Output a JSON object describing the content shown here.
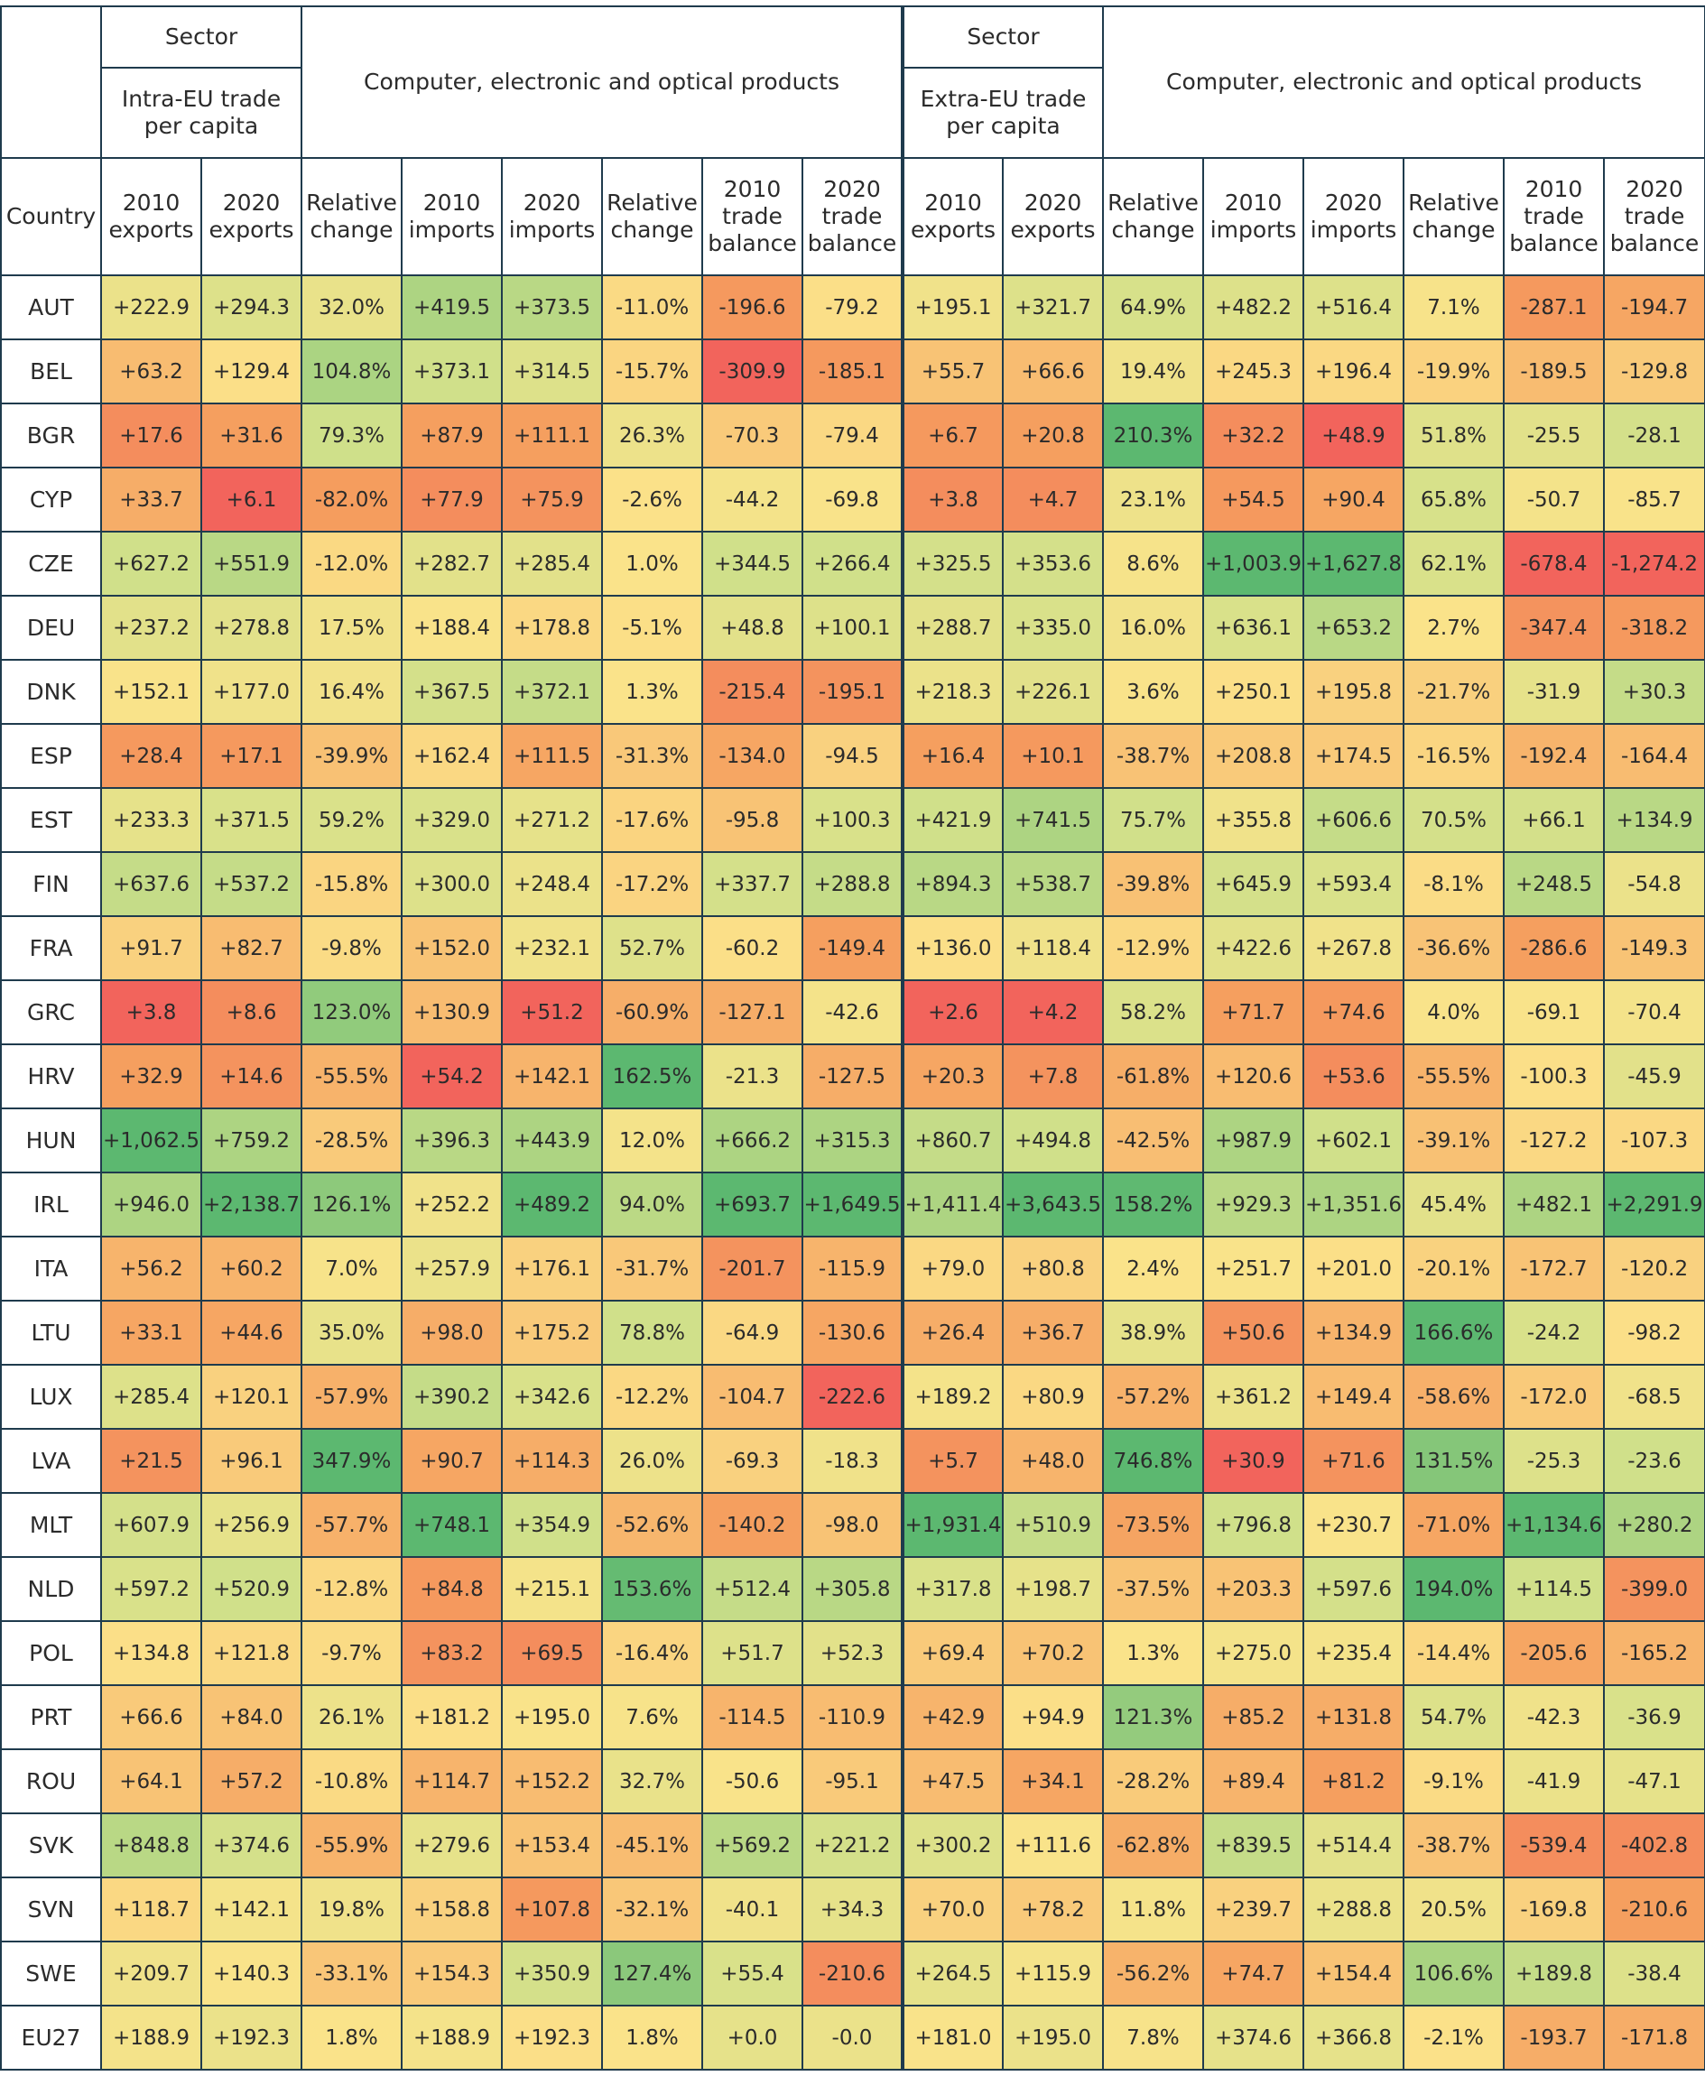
{
  "header": {
    "sector_label": "Sector",
    "left_group_title": "Intra-EU trade per capita",
    "right_group_title": "Extra-EU trade per capita",
    "product_title": "Computer, electronic and optical products",
    "country_label": "Country",
    "columns": [
      "2010 exports",
      "2020 exports",
      "Relative change",
      "2010 imports",
      "2020 imports",
      "Relative change",
      "2010 trade balance",
      "2020 trade balance"
    ]
  },
  "rows": [
    {
      "country": "AUT",
      "intra": [
        "+222.9",
        "+294.3",
        "32.0%",
        "+419.5",
        "+373.5",
        "-11.0%",
        "-196.6",
        "-79.2"
      ],
      "extra": [
        "+195.1",
        "+321.7",
        "64.9%",
        "+482.2",
        "+516.4",
        "7.1%",
        "-287.1",
        "-194.7"
      ]
    },
    {
      "country": "BEL",
      "intra": [
        "+63.2",
        "+129.4",
        "104.8%",
        "+373.1",
        "+314.5",
        "-15.7%",
        "-309.9",
        "-185.1"
      ],
      "extra": [
        "+55.7",
        "+66.6",
        "19.4%",
        "+245.3",
        "+196.4",
        "-19.9%",
        "-189.5",
        "-129.8"
      ]
    },
    {
      "country": "BGR",
      "intra": [
        "+17.6",
        "+31.6",
        "79.3%",
        "+87.9",
        "+111.1",
        "26.3%",
        "-70.3",
        "-79.4"
      ],
      "extra": [
        "+6.7",
        "+20.8",
        "210.3%",
        "+32.2",
        "+48.9",
        "51.8%",
        "-25.5",
        "-28.1"
      ]
    },
    {
      "country": "CYP",
      "intra": [
        "+33.7",
        "+6.1",
        "-82.0%",
        "+77.9",
        "+75.9",
        "-2.6%",
        "-44.2",
        "-69.8"
      ],
      "extra": [
        "+3.8",
        "+4.7",
        "23.1%",
        "+54.5",
        "+90.4",
        "65.8%",
        "-50.7",
        "-85.7"
      ]
    },
    {
      "country": "CZE",
      "intra": [
        "+627.2",
        "+551.9",
        "-12.0%",
        "+282.7",
        "+285.4",
        "1.0%",
        "+344.5",
        "+266.4"
      ],
      "extra": [
        "+325.5",
        "+353.6",
        "8.6%",
        "+1,003.9",
        "+1,627.8",
        "62.1%",
        "-678.4",
        "-1,274.2"
      ]
    },
    {
      "country": "DEU",
      "intra": [
        "+237.2",
        "+278.8",
        "17.5%",
        "+188.4",
        "+178.8",
        "-5.1%",
        "+48.8",
        "+100.1"
      ],
      "extra": [
        "+288.7",
        "+335.0",
        "16.0%",
        "+636.1",
        "+653.2",
        "2.7%",
        "-347.4",
        "-318.2"
      ]
    },
    {
      "country": "DNK",
      "intra": [
        "+152.1",
        "+177.0",
        "16.4%",
        "+367.5",
        "+372.1",
        "1.3%",
        "-215.4",
        "-195.1"
      ],
      "extra": [
        "+218.3",
        "+226.1",
        "3.6%",
        "+250.1",
        "+195.8",
        "-21.7%",
        "-31.9",
        "+30.3"
      ]
    },
    {
      "country": "ESP",
      "intra": [
        "+28.4",
        "+17.1",
        "-39.9%",
        "+162.4",
        "+111.5",
        "-31.3%",
        "-134.0",
        "-94.5"
      ],
      "extra": [
        "+16.4",
        "+10.1",
        "-38.7%",
        "+208.8",
        "+174.5",
        "-16.5%",
        "-192.4",
        "-164.4"
      ]
    },
    {
      "country": "EST",
      "intra": [
        "+233.3",
        "+371.5",
        "59.2%",
        "+329.0",
        "+271.2",
        "-17.6%",
        "-95.8",
        "+100.3"
      ],
      "extra": [
        "+421.9",
        "+741.5",
        "75.7%",
        "+355.8",
        "+606.6",
        "70.5%",
        "+66.1",
        "+134.9"
      ]
    },
    {
      "country": "FIN",
      "intra": [
        "+637.6",
        "+537.2",
        "-15.8%",
        "+300.0",
        "+248.4",
        "-17.2%",
        "+337.7",
        "+288.8"
      ],
      "extra": [
        "+894.3",
        "+538.7",
        "-39.8%",
        "+645.9",
        "+593.4",
        "-8.1%",
        "+248.5",
        "-54.8"
      ]
    },
    {
      "country": "FRA",
      "intra": [
        "+91.7",
        "+82.7",
        "-9.8%",
        "+152.0",
        "+232.1",
        "52.7%",
        "-60.2",
        "-149.4"
      ],
      "extra": [
        "+136.0",
        "+118.4",
        "-12.9%",
        "+422.6",
        "+267.8",
        "-36.6%",
        "-286.6",
        "-149.3"
      ]
    },
    {
      "country": "GRC",
      "intra": [
        "+3.8",
        "+8.6",
        "123.0%",
        "+130.9",
        "+51.2",
        "-60.9%",
        "-127.1",
        "-42.6"
      ],
      "extra": [
        "+2.6",
        "+4.2",
        "58.2%",
        "+71.7",
        "+74.6",
        "4.0%",
        "-69.1",
        "-70.4"
      ]
    },
    {
      "country": "HRV",
      "intra": [
        "+32.9",
        "+14.6",
        "-55.5%",
        "+54.2",
        "+142.1",
        "162.5%",
        "-21.3",
        "-127.5"
      ],
      "extra": [
        "+20.3",
        "+7.8",
        "-61.8%",
        "+120.6",
        "+53.6",
        "-55.5%",
        "-100.3",
        "-45.9"
      ]
    },
    {
      "country": "HUN",
      "intra": [
        "+1,062.5",
        "+759.2",
        "-28.5%",
        "+396.3",
        "+443.9",
        "12.0%",
        "+666.2",
        "+315.3"
      ],
      "extra": [
        "+860.7",
        "+494.8",
        "-42.5%",
        "+987.9",
        "+602.1",
        "-39.1%",
        "-127.2",
        "-107.3"
      ]
    },
    {
      "country": "IRL",
      "intra": [
        "+946.0",
        "+2,138.7",
        "126.1%",
        "+252.2",
        "+489.2",
        "94.0%",
        "+693.7",
        "+1,649.5"
      ],
      "extra": [
        "+1,411.4",
        "+3,643.5",
        "158.2%",
        "+929.3",
        "+1,351.6",
        "45.4%",
        "+482.1",
        "+2,291.9"
      ]
    },
    {
      "country": "ITA",
      "intra": [
        "+56.2",
        "+60.2",
        "7.0%",
        "+257.9",
        "+176.1",
        "-31.7%",
        "-201.7",
        "-115.9"
      ],
      "extra": [
        "+79.0",
        "+80.8",
        "2.4%",
        "+251.7",
        "+201.0",
        "-20.1%",
        "-172.7",
        "-120.2"
      ]
    },
    {
      "country": "LTU",
      "intra": [
        "+33.1",
        "+44.6",
        "35.0%",
        "+98.0",
        "+175.2",
        "78.8%",
        "-64.9",
        "-130.6"
      ],
      "extra": [
        "+26.4",
        "+36.7",
        "38.9%",
        "+50.6",
        "+134.9",
        "166.6%",
        "-24.2",
        "-98.2"
      ]
    },
    {
      "country": "LUX",
      "intra": [
        "+285.4",
        "+120.1",
        "-57.9%",
        "+390.2",
        "+342.6",
        "-12.2%",
        "-104.7",
        "-222.6"
      ],
      "extra": [
        "+189.2",
        "+80.9",
        "-57.2%",
        "+361.2",
        "+149.4",
        "-58.6%",
        "-172.0",
        "-68.5"
      ]
    },
    {
      "country": "LVA",
      "intra": [
        "+21.5",
        "+96.1",
        "347.9%",
        "+90.7",
        "+114.3",
        "26.0%",
        "-69.3",
        "-18.3"
      ],
      "extra": [
        "+5.7",
        "+48.0",
        "746.8%",
        "+30.9",
        "+71.6",
        "131.5%",
        "-25.3",
        "-23.6"
      ]
    },
    {
      "country": "MLT",
      "intra": [
        "+607.9",
        "+256.9",
        "-57.7%",
        "+748.1",
        "+354.9",
        "-52.6%",
        "-140.2",
        "-98.0"
      ],
      "extra": [
        "+1,931.4",
        "+510.9",
        "-73.5%",
        "+796.8",
        "+230.7",
        "-71.0%",
        "+1,134.6",
        "+280.2"
      ]
    },
    {
      "country": "NLD",
      "intra": [
        "+597.2",
        "+520.9",
        "-12.8%",
        "+84.8",
        "+215.1",
        "153.6%",
        "+512.4",
        "+305.8"
      ],
      "extra": [
        "+317.8",
        "+198.7",
        "-37.5%",
        "+203.3",
        "+597.6",
        "194.0%",
        "+114.5",
        "-399.0"
      ]
    },
    {
      "country": "POL",
      "intra": [
        "+134.8",
        "+121.8",
        "-9.7%",
        "+83.2",
        "+69.5",
        "-16.4%",
        "+51.7",
        "+52.3"
      ],
      "extra": [
        "+69.4",
        "+70.2",
        "1.3%",
        "+275.0",
        "+235.4",
        "-14.4%",
        "-205.6",
        "-165.2"
      ]
    },
    {
      "country": "PRT",
      "intra": [
        "+66.6",
        "+84.0",
        "26.1%",
        "+181.2",
        "+195.0",
        "7.6%",
        "-114.5",
        "-110.9"
      ],
      "extra": [
        "+42.9",
        "+94.9",
        "121.3%",
        "+85.2",
        "+131.8",
        "54.7%",
        "-42.3",
        "-36.9"
      ]
    },
    {
      "country": "ROU",
      "intra": [
        "+64.1",
        "+57.2",
        "-10.8%",
        "+114.7",
        "+152.2",
        "32.7%",
        "-50.6",
        "-95.1"
      ],
      "extra": [
        "+47.5",
        "+34.1",
        "-28.2%",
        "+89.4",
        "+81.2",
        "-9.1%",
        "-41.9",
        "-47.1"
      ]
    },
    {
      "country": "SVK",
      "intra": [
        "+848.8",
        "+374.6",
        "-55.9%",
        "+279.6",
        "+153.4",
        "-45.1%",
        "+569.2",
        "+221.2"
      ],
      "extra": [
        "+300.2",
        "+111.6",
        "-62.8%",
        "+839.5",
        "+514.4",
        "-38.7%",
        "-539.4",
        "-402.8"
      ]
    },
    {
      "country": "SVN",
      "intra": [
        "+118.7",
        "+142.1",
        "19.8%",
        "+158.8",
        "+107.8",
        "-32.1%",
        "-40.1",
        "+34.3"
      ],
      "extra": [
        "+70.0",
        "+78.2",
        "11.8%",
        "+239.7",
        "+288.8",
        "20.5%",
        "-169.8",
        "-210.6"
      ]
    },
    {
      "country": "SWE",
      "intra": [
        "+209.7",
        "+140.3",
        "-33.1%",
        "+154.3",
        "+350.9",
        "127.4%",
        "+55.4",
        "-210.6"
      ],
      "extra": [
        "+264.5",
        "+115.9",
        "-56.2%",
        "+74.7",
        "+154.4",
        "106.6%",
        "+189.8",
        "-38.4"
      ]
    },
    {
      "country": "EU27",
      "intra": [
        "+188.9",
        "+192.3",
        "1.8%",
        "+188.9",
        "+192.3",
        "1.8%",
        "+0.0",
        "-0.0"
      ],
      "extra": [
        "+181.0",
        "+195.0",
        "7.8%",
        "+374.6",
        "+366.8",
        "-2.1%",
        "-193.7",
        "-171.8"
      ]
    }
  ],
  "colors": {
    "border": "#1f3b4d",
    "red": "#f2645c",
    "orange": "#f59e5e",
    "yellow": "#fbe38a",
    "light_green": "#cfe08a",
    "green": "#5cb870"
  }
}
